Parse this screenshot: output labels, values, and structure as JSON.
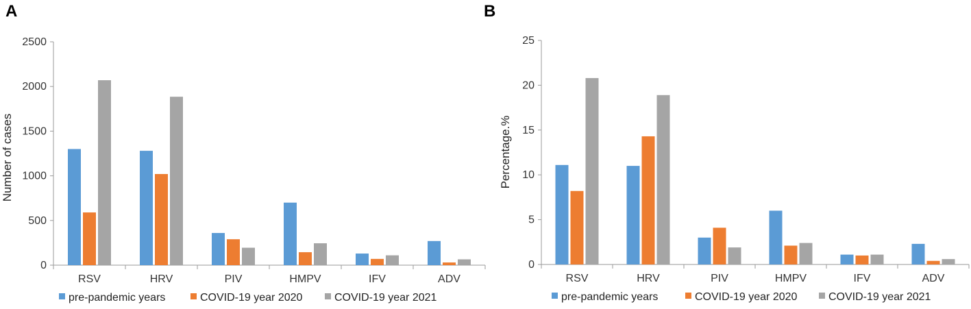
{
  "chart_data": [
    {
      "panel": "A",
      "type": "bar",
      "title": "",
      "xlabel": "",
      "ylabel": "Number of cases",
      "ylim": [
        0,
        2500
      ],
      "yticks": [
        0,
        500,
        1000,
        1500,
        2000,
        2500
      ],
      "categories": [
        "RSV",
        "HRV",
        "PIV",
        "HMPV",
        "IFV",
        "ADV"
      ],
      "series": [
        {
          "name": "pre-pandemic years",
          "color": "#5B9BD5",
          "values": [
            1300,
            1280,
            360,
            700,
            130,
            270
          ]
        },
        {
          "name": "COVID-19 year 2020",
          "color": "#ED7D31",
          "values": [
            590,
            1020,
            290,
            145,
            70,
            30
          ]
        },
        {
          "name": "COVID-19 year 2021",
          "color": "#A5A5A5",
          "values": [
            2070,
            1885,
            195,
            245,
            110,
            65
          ]
        }
      ],
      "legend": "bottom"
    },
    {
      "panel": "B",
      "type": "bar",
      "title": "",
      "xlabel": "",
      "ylabel": "Percentage.%",
      "ylim": [
        0,
        25
      ],
      "yticks": [
        0,
        5,
        10,
        15,
        20,
        25
      ],
      "categories": [
        "RSV",
        "HRV",
        "PIV",
        "HMPV",
        "IFV",
        "ADV"
      ],
      "series": [
        {
          "name": "pre-pandemic years",
          "color": "#5B9BD5",
          "values": [
            11.1,
            11.0,
            3.0,
            6.0,
            1.1,
            2.3
          ]
        },
        {
          "name": "COVID-19 year 2020",
          "color": "#ED7D31",
          "values": [
            8.2,
            14.3,
            4.1,
            2.1,
            1.0,
            0.4
          ]
        },
        {
          "name": "COVID-19 year 2021",
          "color": "#A5A5A5",
          "values": [
            20.8,
            18.9,
            1.9,
            2.4,
            1.1,
            0.6
          ]
        }
      ],
      "legend": "bottom"
    }
  ]
}
